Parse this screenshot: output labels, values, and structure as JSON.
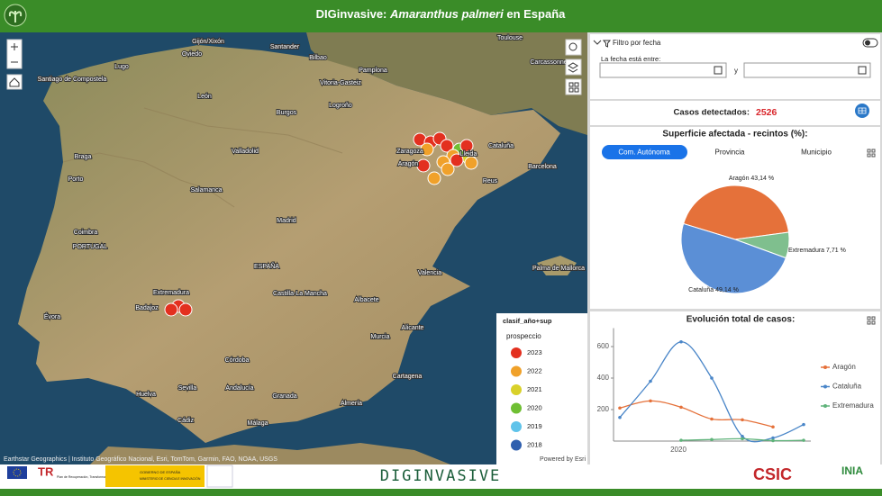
{
  "header": {
    "title_prefix": "DIGinvasive:",
    "title_species": "Amaranthus palmeri",
    "title_suffix": "en España"
  },
  "map": {
    "places": [
      "Gijón/Xixón",
      "Oviedo",
      "Santander",
      "Bilbao",
      "Toulouse",
      "Carcassonne",
      "Santiago de Compostela",
      "Lugo",
      "León",
      "Burgos",
      "Vitoria-Gasteiz",
      "Pamplona",
      "Logroño",
      "Zaragoza",
      "Aragón",
      "Lleida",
      "Cataluña",
      "Barcelona",
      "Reus",
      "Valladolid",
      "Braga",
      "Porto",
      "Salamanca",
      "Madrid",
      "Coimbra",
      "PORTUGAL",
      "ESPAÑA",
      "Castilla-La Mancha",
      "Extremadura",
      "Badajoz",
      "Évora",
      "Valencia",
      "Albacete",
      "Palma de Mallorca",
      "Murcia",
      "Alicante",
      "Córdoba",
      "Sevilla",
      "Andalucía",
      "Granada",
      "Cartagena",
      "Huelva",
      "Almería",
      "Málaga",
      "Cádiz"
    ],
    "attribution": "Earthstar Geographics | Instituto Geográfico Nacional, Esri, TomTom, Garmin, FAO, NOAA, USGS",
    "powered_by": "Powered by Esri",
    "legend": {
      "title": "clasif_año+sup",
      "subtitle": "prospeccio",
      "items": [
        {
          "label": "2023",
          "color": "#e3301f"
        },
        {
          "label": "2022",
          "color": "#f0a12a"
        },
        {
          "label": "2021",
          "color": "#d9d12a"
        },
        {
          "label": "2020",
          "color": "#6fbf33"
        },
        {
          "label": "2019",
          "color": "#5fc3ea"
        },
        {
          "label": "2018",
          "color": "#2f5fae"
        }
      ]
    }
  },
  "filter": {
    "title": "Filtro por fecha",
    "label": "La fecha está entre:",
    "and": "y"
  },
  "cases": {
    "label": "Casos detectados:",
    "value": 2526
  },
  "chart_data": [
    {
      "type": "pie",
      "title": "Superficie afectada - recintos (%):",
      "tabs": [
        "Com. Autónoma",
        "Provincia",
        "Municipio"
      ],
      "categories": [
        "Aragón",
        "Extremadura",
        "Cataluña"
      ],
      "values": [
        43.14,
        7.71,
        49.14
      ],
      "value_labels": [
        "Aragón 43,14 %",
        "Extremadura 7,71 %",
        "Cataluña 49,14 %"
      ],
      "colors": [
        "#e5713a",
        "#7fbf8e",
        "#5b8fd6"
      ]
    },
    {
      "type": "line",
      "title": "Evolución total de casos:",
      "categories": [
        null,
        null,
        "2020",
        null,
        null,
        null,
        null
      ],
      "ylim": [
        0,
        700
      ],
      "yticks": [
        200,
        400,
        600
      ],
      "series": [
        {
          "name": "Aragón",
          "color": "#e5713a",
          "values": [
            210,
            255,
            215,
            140,
            135,
            90,
            null
          ]
        },
        {
          "name": "Cataluña",
          "color": "#4a86c8",
          "values": [
            150,
            380,
            630,
            400,
            30,
            20,
            105
          ]
        },
        {
          "name": "Extremadura",
          "color": "#5fb37a",
          "values": [
            null,
            null,
            5,
            10,
            15,
            3,
            5
          ]
        }
      ]
    }
  ],
  "footer": {
    "plan": "Plan de Recuperación, Transformación y Resiliencia",
    "gov": "GOBIERNO DE ESPAÑA",
    "ministry": "MINISTERIO DE CIENCIA E INNOVACIÓN",
    "brand": "DIGINVASIVE",
    "csic": "CSIC",
    "inia": "INIA"
  }
}
